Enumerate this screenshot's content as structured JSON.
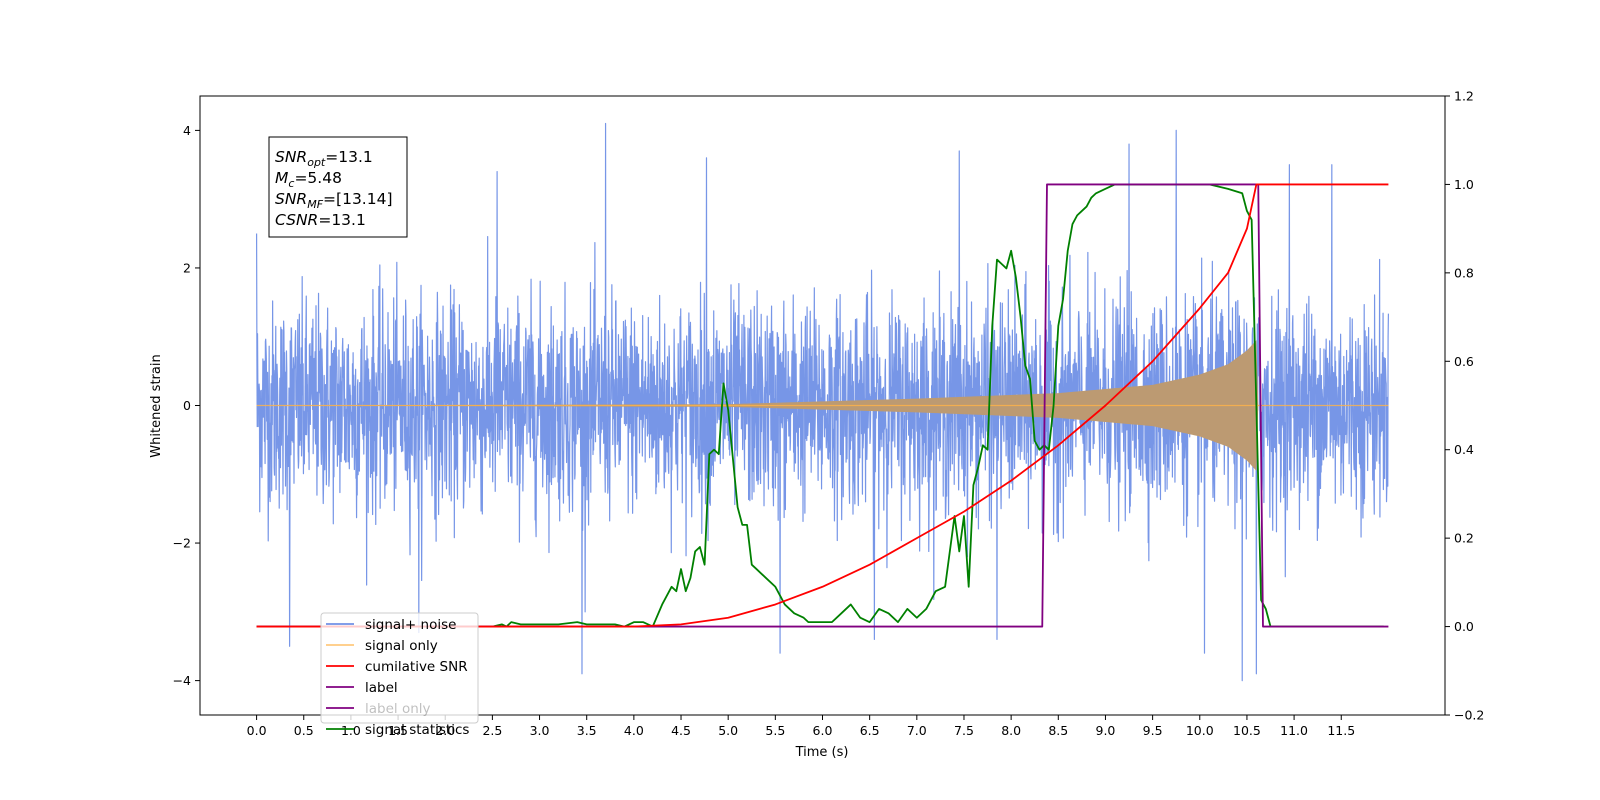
{
  "chart_data": {
    "type": "line",
    "xlabel": "Time (s)",
    "ylabel_left": "Whitened strain",
    "ylabel_right": "",
    "xlim": [
      -0.6,
      12.6
    ],
    "ylim_left": [
      -4.5,
      4.5
    ],
    "ylim_right": [
      -0.2,
      1.2
    ],
    "x_ticks": [
      "0.0",
      "0.5",
      "1.0",
      "1.5",
      "2.0",
      "2.5",
      "3.0",
      "3.5",
      "4.0",
      "4.5",
      "5.0",
      "5.5",
      "6.0",
      "6.5",
      "7.0",
      "7.5",
      "8.0",
      "8.5",
      "9.0",
      "9.5",
      "10.0",
      "10.5",
      "11.0",
      "11.5"
    ],
    "y_ticks_left": [
      "4",
      "2",
      "0",
      "−2",
      "−4"
    ],
    "y_ticks_right": [
      "1.2",
      "1.0",
      "0.8",
      "0.6",
      "0.4",
      "0.2",
      "0.0",
      "−0.2"
    ],
    "grid": false,
    "legend_position": "lower-left",
    "annotation_box": {
      "position": "top-left",
      "lines": [
        {
          "symbol": "SNR",
          "sub": "opt",
          "value": "=13.1"
        },
        {
          "symbol": "M",
          "sub": "c",
          "value": "=5.48"
        },
        {
          "symbol": "SNR",
          "sub": "MF",
          "value": "=[13.14]"
        },
        {
          "symbol": "CSNR",
          "sub": "",
          "value": "=13.1"
        }
      ]
    },
    "series": [
      {
        "name": "signal+ noise",
        "axis": "left",
        "color": "#7090e6",
        "kind": "noisy-strain",
        "x_range": [
          0.0,
          12.0
        ],
        "envelope_typical": [
          -1.8,
          1.9
        ],
        "extreme_peaks": [
          {
            "x": 0.0,
            "y": 2.5
          },
          {
            "x": 0.35,
            "y": -3.5
          },
          {
            "x": 1.72,
            "y": -3.3
          },
          {
            "x": 2.55,
            "y": 3.4
          },
          {
            "x": 3.45,
            "y": -3.9
          },
          {
            "x": 3.7,
            "y": 4.1
          },
          {
            "x": 4.77,
            "y": 3.6
          },
          {
            "x": 5.55,
            "y": -3.6
          },
          {
            "x": 6.55,
            "y": -3.4
          },
          {
            "x": 7.45,
            "y": 3.7
          },
          {
            "x": 7.85,
            "y": -3.4
          },
          {
            "x": 9.25,
            "y": 3.8
          },
          {
            "x": 9.75,
            "y": 4.0
          },
          {
            "x": 10.05,
            "y": -3.6
          },
          {
            "x": 10.45,
            "y": -4.0
          },
          {
            "x": 10.6,
            "y": -3.9
          },
          {
            "x": 10.95,
            "y": 3.5
          },
          {
            "x": 11.4,
            "y": 3.5
          }
        ]
      },
      {
        "name": "signal only",
        "axis": "left",
        "color": "#ffb347",
        "kind": "chirp",
        "x_range": [
          0.0,
          12.0
        ],
        "merger_time": 10.6,
        "envelope_at": [
          {
            "x": 5.0,
            "y": 0.02
          },
          {
            "x": 7.0,
            "y": 0.1
          },
          {
            "x": 8.5,
            "y": 0.18
          },
          {
            "x": 9.5,
            "y": 0.3
          },
          {
            "x": 10.0,
            "y": 0.45
          },
          {
            "x": 10.3,
            "y": 0.6
          },
          {
            "x": 10.5,
            "y": 0.8
          },
          {
            "x": 10.6,
            "y": 0.95
          }
        ]
      },
      {
        "name": "cumilative SNR",
        "axis": "right",
        "color": "#ff0000",
        "x": [
          0.0,
          4.0,
          4.5,
          5.0,
          5.5,
          6.0,
          6.5,
          7.0,
          7.5,
          8.0,
          8.5,
          9.0,
          9.5,
          10.0,
          10.3,
          10.5,
          10.6,
          12.0
        ],
        "values": [
          0.0,
          0.0,
          0.005,
          0.02,
          0.05,
          0.09,
          0.14,
          0.2,
          0.26,
          0.33,
          0.41,
          0.5,
          0.6,
          0.72,
          0.8,
          0.9,
          1.0,
          1.0
        ]
      },
      {
        "name": "label",
        "axis": "right",
        "color": "#800080",
        "x": [
          0.0,
          8.33,
          8.38,
          10.62,
          10.67,
          12.0
        ],
        "values": [
          0.0,
          0.0,
          1.0,
          1.0,
          0.0,
          0.0
        ]
      },
      {
        "name": "label only",
        "axis": "right",
        "color": "#800080",
        "hidden_line": true
      },
      {
        "name": "signal statistics",
        "axis": "right",
        "color": "#008000",
        "x": [
          0.0,
          2.5,
          2.6,
          2.65,
          2.7,
          2.8,
          2.9,
          3.0,
          3.2,
          3.4,
          3.5,
          3.6,
          3.8,
          3.9,
          4.0,
          4.1,
          4.2,
          4.3,
          4.4,
          4.45,
          4.5,
          4.55,
          4.6,
          4.65,
          4.7,
          4.75,
          4.8,
          4.85,
          4.9,
          4.95,
          5.0,
          5.05,
          5.1,
          5.15,
          5.2,
          5.25,
          5.3,
          5.4,
          5.5,
          5.6,
          5.7,
          5.8,
          5.85,
          5.9,
          6.0,
          6.1,
          6.2,
          6.3,
          6.4,
          6.5,
          6.6,
          6.7,
          6.8,
          6.9,
          7.0,
          7.1,
          7.2,
          7.3,
          7.4,
          7.45,
          7.5,
          7.55,
          7.6,
          7.65,
          7.7,
          7.75,
          7.8,
          7.85,
          7.9,
          7.95,
          8.0,
          8.05,
          8.1,
          8.15,
          8.2,
          8.25,
          8.3,
          8.35,
          8.4,
          8.45,
          8.5,
          8.55,
          8.6,
          8.65,
          8.7,
          8.75,
          8.8,
          8.85,
          8.9,
          9.0,
          9.1,
          9.2,
          9.3,
          9.5,
          9.7,
          9.9,
          10.1,
          10.3,
          10.45,
          10.5,
          10.55,
          10.6,
          10.65,
          10.7,
          10.75,
          10.8,
          10.85,
          10.9,
          11.0,
          11.5,
          11.95
        ],
        "values": [
          0.0,
          0.0,
          0.005,
          0.0,
          0.01,
          0.005,
          0.005,
          0.005,
          0.005,
          0.01,
          0.005,
          0.005,
          0.005,
          0.0,
          0.01,
          0.01,
          0.0,
          0.05,
          0.09,
          0.08,
          0.13,
          0.08,
          0.11,
          0.17,
          0.18,
          0.14,
          0.39,
          0.4,
          0.39,
          0.55,
          0.49,
          0.38,
          0.27,
          0.23,
          0.23,
          0.14,
          0.13,
          0.11,
          0.09,
          0.05,
          0.03,
          0.02,
          0.01,
          0.01,
          0.01,
          0.01,
          0.03,
          0.05,
          0.02,
          0.01,
          0.04,
          0.03,
          0.01,
          0.04,
          0.02,
          0.04,
          0.08,
          0.09,
          0.25,
          0.17,
          0.25,
          0.09,
          0.32,
          0.36,
          0.41,
          0.4,
          0.68,
          0.83,
          0.82,
          0.81,
          0.85,
          0.79,
          0.7,
          0.59,
          0.56,
          0.42,
          0.4,
          0.41,
          0.4,
          0.5,
          0.68,
          0.74,
          0.85,
          0.91,
          0.93,
          0.94,
          0.95,
          0.97,
          0.98,
          0.99,
          1.0,
          1.0,
          1.0,
          1.0,
          1.0,
          1.0,
          1.0,
          0.99,
          0.98,
          0.94,
          0.92,
          0.5,
          0.06,
          0.04,
          0.0,
          0.0,
          0.0,
          0.0,
          0.0,
          0.0,
          0.0
        ]
      }
    ]
  }
}
